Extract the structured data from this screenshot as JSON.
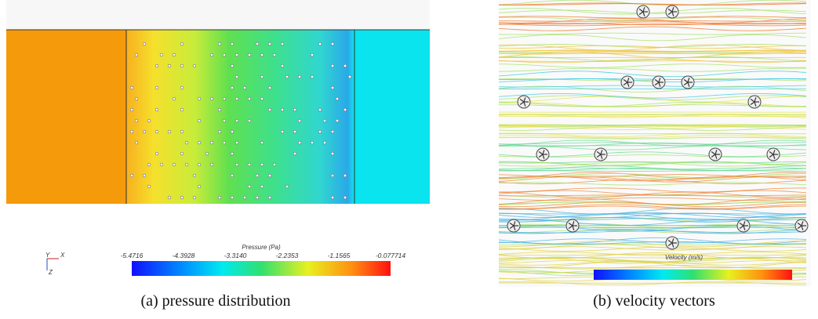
{
  "figure_a": {
    "colorbar": {
      "title": "Pressure (Pa)",
      "ticks": [
        "-5.4716",
        "-4.3928",
        "-3.3140",
        "-2.2353",
        "-1.1565",
        "-0.077714"
      ]
    },
    "axes": [
      "Y",
      "X",
      "Z"
    ],
    "caption": "(a) pressure distribution"
  },
  "figure_b": {
    "colorbar": {
      "title": "Velocity (m/s)"
    },
    "caption": "(b) velocity vectors"
  }
}
